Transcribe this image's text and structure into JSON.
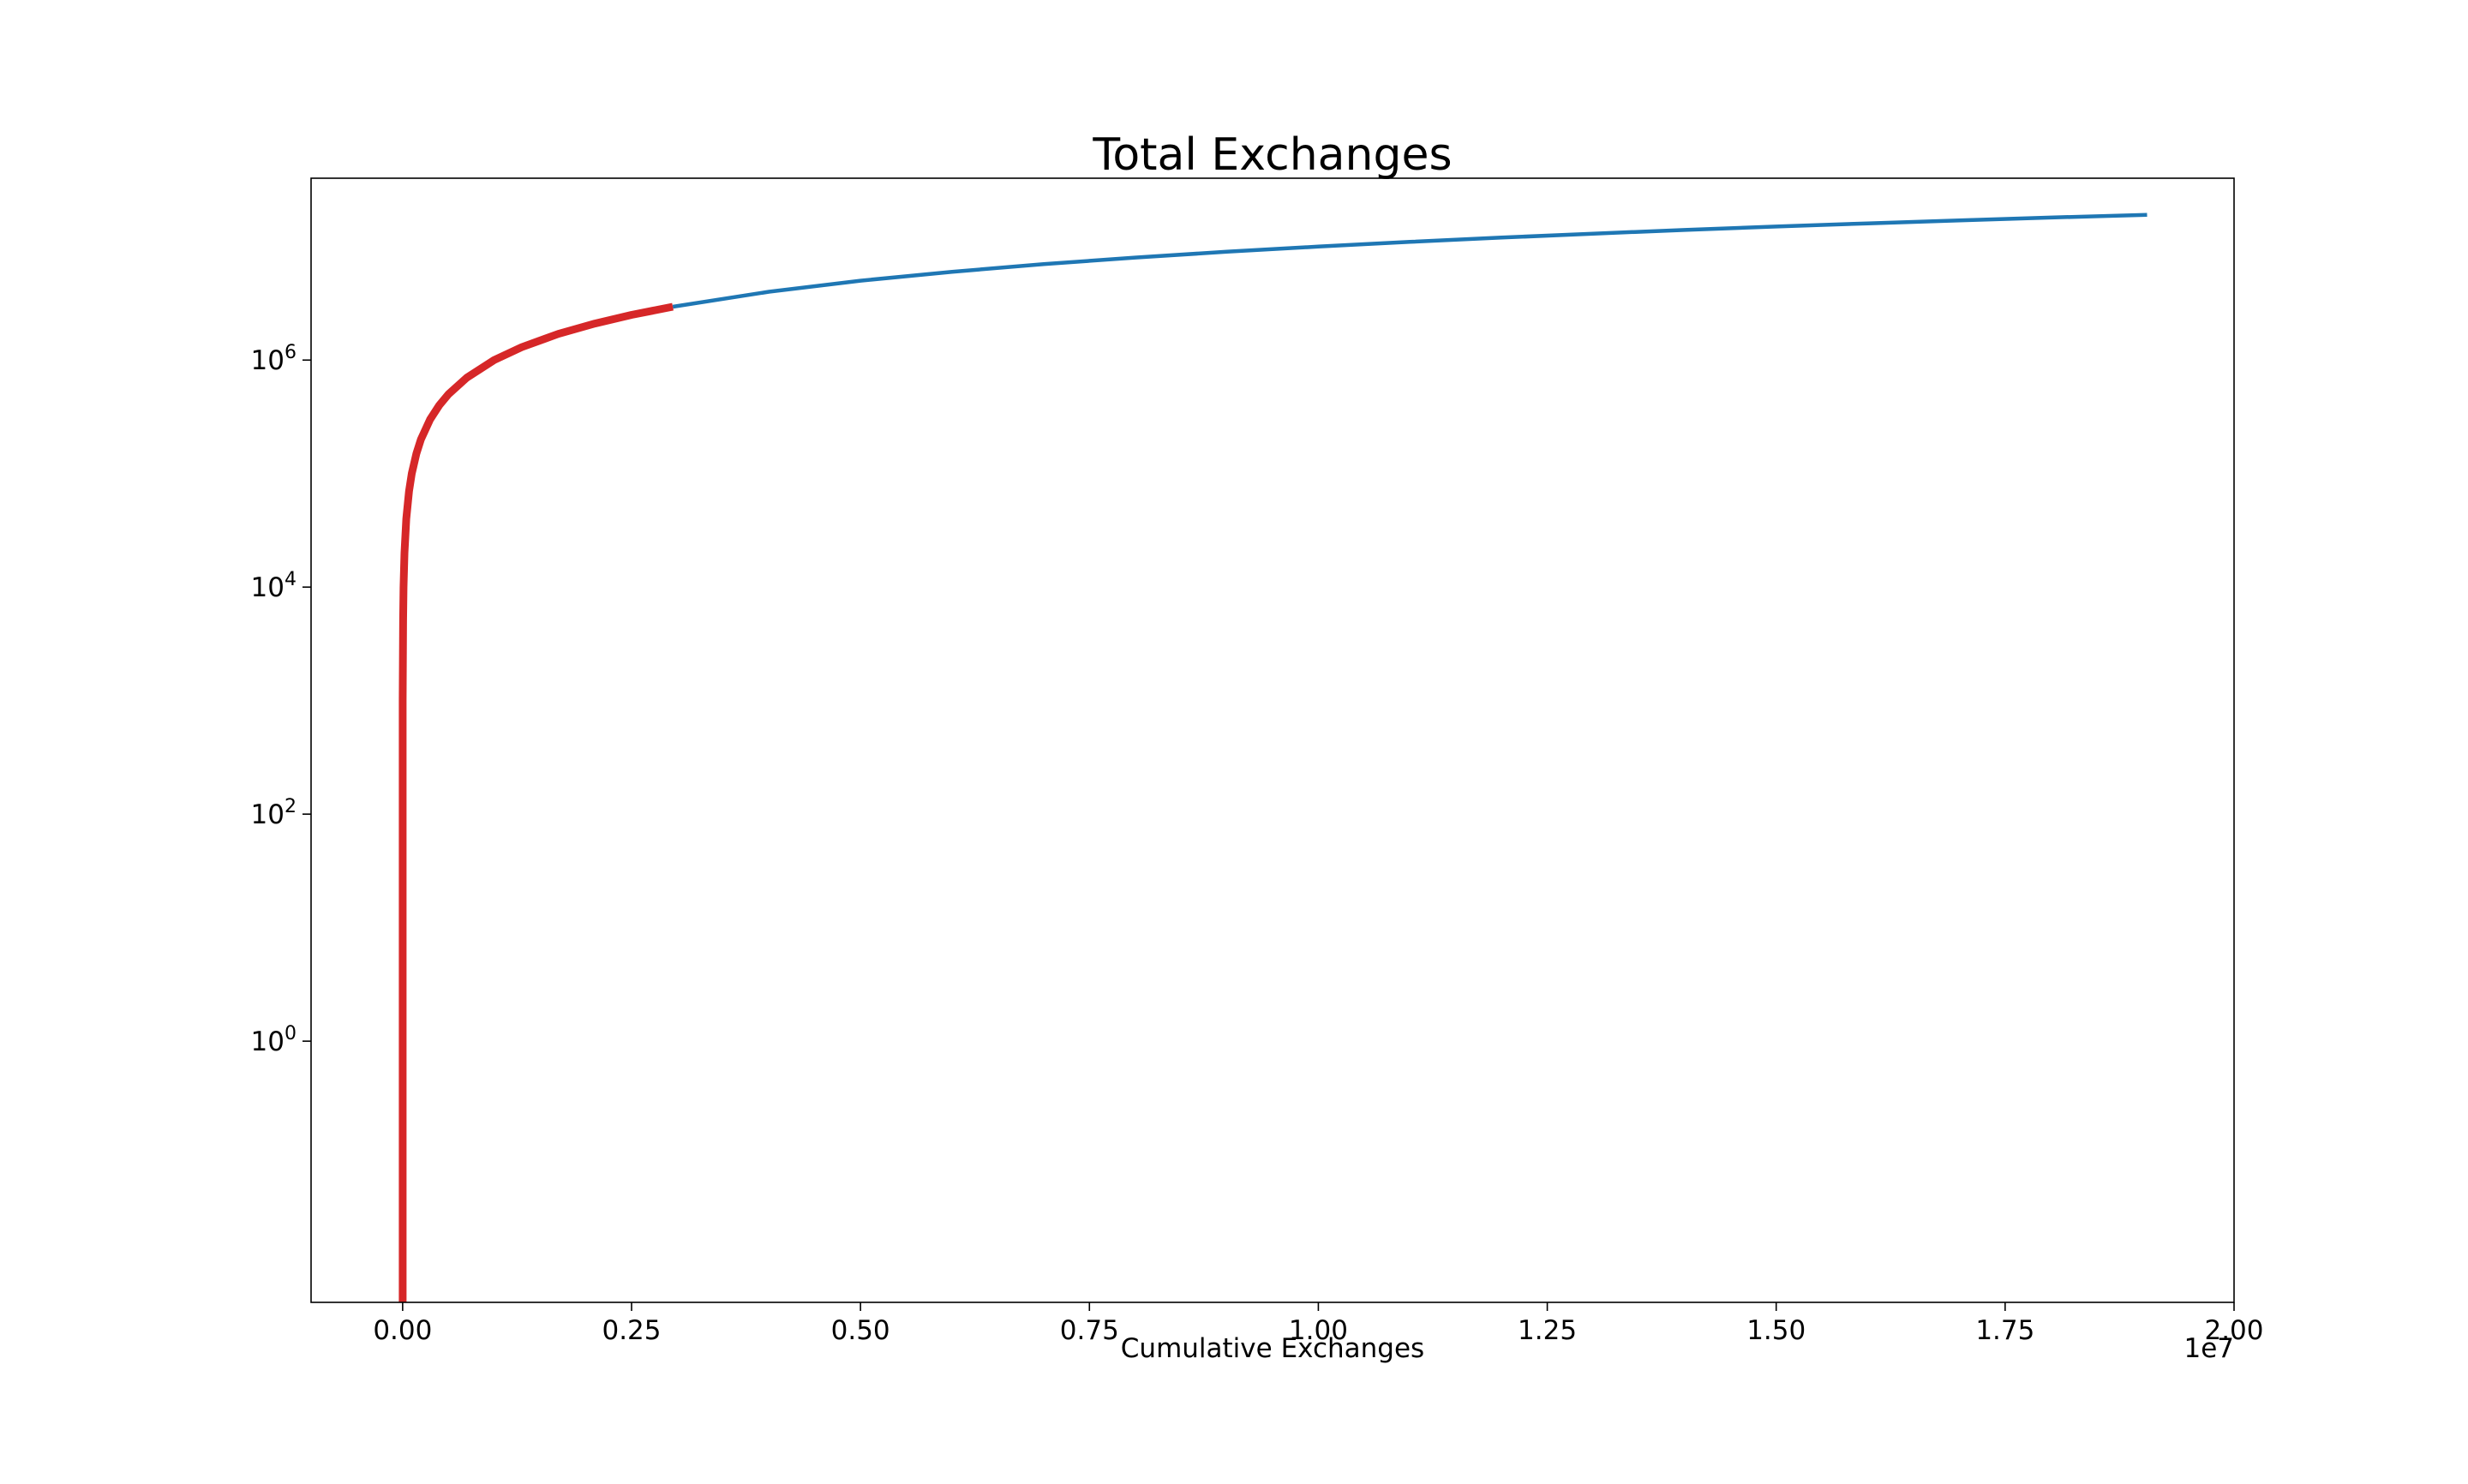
{
  "chart_data": {
    "type": "line",
    "title": "Total Exchanges",
    "xlabel": "Cumulative Exchanges",
    "ylabel": "",
    "x_offset_label": "1e7",
    "xscale": "linear",
    "yscale": "log",
    "xlim": [
      -1000000,
      20000000
    ],
    "ylim": [
      0.005,
      40000000
    ],
    "grid": false,
    "legend": "none",
    "x_ticks": [
      {
        "value": 0,
        "label": "0.00"
      },
      {
        "value": 2500000,
        "label": "0.25"
      },
      {
        "value": 5000000,
        "label": "0.50"
      },
      {
        "value": 7500000,
        "label": "0.75"
      },
      {
        "value": 10000000,
        "label": "1.00"
      },
      {
        "value": 12500000,
        "label": "1.25"
      },
      {
        "value": 15000000,
        "label": "1.50"
      },
      {
        "value": 17500000,
        "label": "1.75"
      },
      {
        "value": 20000000,
        "label": "2.00"
      }
    ],
    "y_ticks": [
      {
        "value": 1,
        "base": "10",
        "exp": "0"
      },
      {
        "value": 100,
        "base": "10",
        "exp": "2"
      },
      {
        "value": 10000,
        "base": "10",
        "exp": "4"
      },
      {
        "value": 1000000,
        "base": "10",
        "exp": "6"
      }
    ],
    "series": [
      {
        "color": "#1f77b4",
        "points": [
          [
            2950000,
            2950000
          ],
          [
            4000000,
            4000000
          ],
          [
            5000000,
            5000000
          ],
          [
            6000000,
            6000000
          ],
          [
            7000000,
            7000000
          ],
          [
            8000000,
            8000000
          ],
          [
            9000000,
            9000000
          ],
          [
            10000000,
            10000000
          ],
          [
            11000000,
            11000000
          ],
          [
            12000000,
            12000000
          ],
          [
            13000000,
            13000000
          ],
          [
            14000000,
            14000000
          ],
          [
            15000000,
            15000000
          ],
          [
            16000000,
            16000000
          ],
          [
            17000000,
            17000000
          ],
          [
            18000000,
            18000000
          ],
          [
            19050000,
            19050000
          ]
        ]
      },
      {
        "color": "#d62728",
        "points": [
          [
            0,
            0.005
          ],
          [
            0,
            0.01
          ],
          [
            0,
            1
          ],
          [
            0,
            100
          ],
          [
            0,
            1000
          ],
          [
            5000,
            5000
          ],
          [
            10000,
            10000
          ],
          [
            20000,
            20000
          ],
          [
            40000,
            40000
          ],
          [
            70000,
            70000
          ],
          [
            100000,
            100000
          ],
          [
            150000,
            150000
          ],
          [
            200000,
            200000
          ],
          [
            300000,
            300000
          ],
          [
            400000,
            400000
          ],
          [
            500000,
            500000
          ],
          [
            700000,
            700000
          ],
          [
            1000000,
            1000000
          ],
          [
            1300000,
            1300000
          ],
          [
            1700000,
            1700000
          ],
          [
            2100000,
            2100000
          ],
          [
            2500000,
            2500000
          ],
          [
            2950000,
            2950000
          ]
        ]
      }
    ]
  }
}
